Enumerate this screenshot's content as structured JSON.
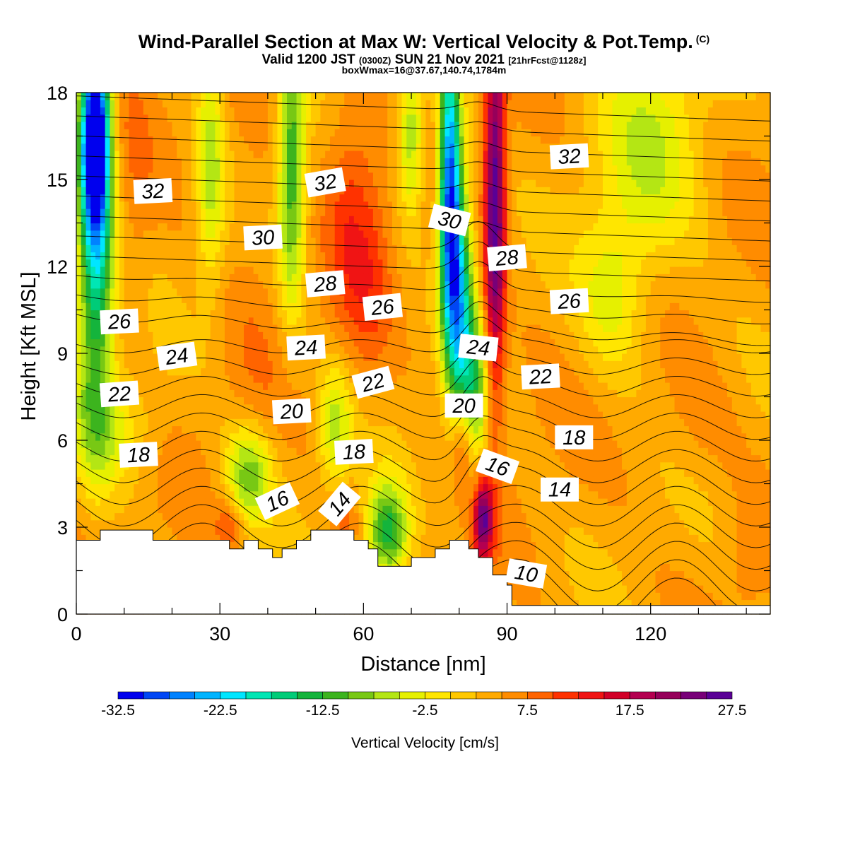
{
  "title": {
    "main": "Wind-Parallel Section at Max W: Vertical Velocity & Pot.Temp.",
    "copyright": "(C)",
    "valid_prefix": "Valid 1200 JST",
    "valid_utc": "(0300Z)",
    "valid_date": "SUN 21 Nov 2021",
    "forecast": "[21hrFcst@1128z]",
    "boxline": "boxWmax=16@37.67,140.74,1784m"
  },
  "chart_data": {
    "type": "heatmap",
    "xlabel": "Distance [nm]",
    "ylabel": "Height [Kft MSL]",
    "xlim": [
      0,
      145
    ],
    "ylim": [
      0,
      18
    ],
    "x_ticks": [
      0,
      30,
      60,
      90,
      120
    ],
    "y_ticks": [
      0,
      3,
      6,
      9,
      12,
      15,
      18
    ],
    "colorbar": {
      "label": "Vertical Velocity [cm/s]",
      "tick_labels": [
        "-32.5",
        "-22.5",
        "-12.5",
        "-2.5",
        "7.5",
        "17.5",
        "27.5"
      ],
      "tick_values": [
        -32.5,
        -22.5,
        -12.5,
        -2.5,
        7.5,
        17.5,
        27.5
      ],
      "min": -32.5,
      "max": 27.5,
      "step": 2.5,
      "colors": [
        "#0000ee",
        "#0046f5",
        "#0082ff",
        "#00b4ff",
        "#00e6ff",
        "#00e6b4",
        "#00cc78",
        "#14b43c",
        "#3cb41e",
        "#78c814",
        "#b4e614",
        "#e6f000",
        "#ffe600",
        "#ffc800",
        "#ffaa00",
        "#ff8c00",
        "#ff6400",
        "#ff3200",
        "#f01414",
        "#d20028",
        "#b40050",
        "#96005a",
        "#780078",
        "#5a0096"
      ]
    },
    "terrain": [
      [
        0,
        2.55
      ],
      [
        5,
        2.55
      ],
      [
        5,
        2.9
      ],
      [
        16,
        2.9
      ],
      [
        16,
        2.55
      ],
      [
        32,
        2.55
      ],
      [
        32,
        2.25
      ],
      [
        35,
        2.25
      ],
      [
        35,
        2.55
      ],
      [
        38,
        2.55
      ],
      [
        38,
        2.25
      ],
      [
        41,
        2.25
      ],
      [
        41,
        1.95
      ],
      [
        43,
        1.95
      ],
      [
        43,
        2.25
      ],
      [
        46,
        2.25
      ],
      [
        46,
        2.55
      ],
      [
        49,
        2.55
      ],
      [
        49,
        2.9
      ],
      [
        58,
        2.9
      ],
      [
        58,
        2.55
      ],
      [
        61,
        2.55
      ],
      [
        61,
        2.25
      ],
      [
        63,
        2.25
      ],
      [
        63,
        1.65
      ],
      [
        70,
        1.65
      ],
      [
        70,
        1.95
      ],
      [
        75,
        1.95
      ],
      [
        75,
        2.25
      ],
      [
        78,
        2.25
      ],
      [
        78,
        2.55
      ],
      [
        82,
        2.55
      ],
      [
        82,
        2.25
      ],
      [
        84,
        2.25
      ],
      [
        84,
        1.95
      ],
      [
        87,
        1.95
      ],
      [
        87,
        1.35
      ],
      [
        90,
        1.35
      ],
      [
        90,
        1.0
      ],
      [
        91,
        1.0
      ],
      [
        91,
        0.3
      ],
      [
        145,
        0.3
      ]
    ],
    "velocity_features": [
      {
        "x": 4,
        "y": 13.5,
        "sx": 2.6,
        "sy": 4.5,
        "value": -21
      },
      {
        "x": 4,
        "y": 16.5,
        "sx": 2.0,
        "sy": 2.0,
        "value": -25
      },
      {
        "x": 12,
        "y": 14,
        "sx": 3,
        "sy": 6,
        "value": 6
      },
      {
        "x": 28,
        "y": 15.5,
        "sx": 2.0,
        "sy": 3.0,
        "value": -6
      },
      {
        "x": 45,
        "y": 15.5,
        "sx": 2.0,
        "sy": 3.5,
        "value": -12
      },
      {
        "x": 37,
        "y": 13.0,
        "sx": 4,
        "sy": 5,
        "value": 6
      },
      {
        "x": 57,
        "y": 14.0,
        "sx": 3.5,
        "sy": 3.5,
        "value": 10
      },
      {
        "x": 62,
        "y": 12.0,
        "sx": 3.0,
        "sy": 3.0,
        "value": 8
      },
      {
        "x": 70,
        "y": 16.5,
        "sx": 2.0,
        "sy": 2.0,
        "value": -8
      },
      {
        "x": 78,
        "y": 15.0,
        "sx": 1.6,
        "sy": 3.5,
        "value": -27
      },
      {
        "x": 80,
        "y": 11.0,
        "sx": 2.0,
        "sy": 3.0,
        "value": -18
      },
      {
        "x": 83,
        "y": 7.5,
        "sx": 2.0,
        "sy": 2.0,
        "value": -10
      },
      {
        "x": 87.5,
        "y": 14.0,
        "sx": 1.5,
        "sy": 4.5,
        "value": 27
      },
      {
        "x": 85,
        "y": 3.3,
        "sx": 1.4,
        "sy": 1.0,
        "value": 24
      },
      {
        "x": 81,
        "y": 6.0,
        "sx": 1.6,
        "sy": 1.2,
        "value": 14
      },
      {
        "x": 36,
        "y": 4.8,
        "sx": 3.5,
        "sy": 1.2,
        "value": -9
      },
      {
        "x": 54,
        "y": 6.5,
        "sx": 2.5,
        "sy": 1.5,
        "value": -6
      },
      {
        "x": 65,
        "y": 2.8,
        "sx": 3.0,
        "sy": 1.2,
        "value": -14
      },
      {
        "x": 32,
        "y": 3.2,
        "sx": 2.0,
        "sy": 0.7,
        "value": 10
      },
      {
        "x": 56,
        "y": 3.3,
        "sx": 2.0,
        "sy": 0.7,
        "value": 9
      },
      {
        "x": 120,
        "y": 16.0,
        "sx": 8.0,
        "sy": 3.0,
        "value": -4
      },
      {
        "x": 8,
        "y": 6.5,
        "sx": 6.0,
        "sy": 1.5,
        "value": -3
      },
      {
        "x": 130,
        "y": 6.5,
        "sx": 6.0,
        "sy": 1.5,
        "value": 6
      },
      {
        "x": 140,
        "y": 2.0,
        "sx": 3.0,
        "sy": 1.5,
        "value": 6
      },
      {
        "x": 112,
        "y": 11.0,
        "sx": 5.0,
        "sy": 2.0,
        "value": -3
      },
      {
        "x": 95,
        "y": 15.0,
        "sx": 3.0,
        "sy": 3.0,
        "value": 4
      }
    ],
    "theta_contour_labels": [
      {
        "text": "32",
        "x": 16,
        "y": 14.6,
        "rotate": -3
      },
      {
        "text": "32",
        "x": 52,
        "y": 14.9,
        "rotate": -10
      },
      {
        "text": "32",
        "x": 103,
        "y": 15.8,
        "rotate": -3
      },
      {
        "text": "30",
        "x": 39,
        "y": 13.0,
        "rotate": -3
      },
      {
        "text": "30",
        "x": 78,
        "y": 13.6,
        "rotate": 14
      },
      {
        "text": "28",
        "x": 52,
        "y": 11.4,
        "rotate": -5
      },
      {
        "text": "28",
        "x": 90,
        "y": 12.3,
        "rotate": -5
      },
      {
        "text": "26",
        "x": 9,
        "y": 10.1,
        "rotate": -3
      },
      {
        "text": "26",
        "x": 64,
        "y": 10.6,
        "rotate": -6
      },
      {
        "text": "26",
        "x": 103,
        "y": 10.8,
        "rotate": -3
      },
      {
        "text": "24",
        "x": 21,
        "y": 8.9,
        "rotate": -8
      },
      {
        "text": "24",
        "x": 48,
        "y": 9.2,
        "rotate": -3
      },
      {
        "text": "24",
        "x": 84,
        "y": 9.2,
        "rotate": 6
      },
      {
        "text": "22",
        "x": 9,
        "y": 7.6,
        "rotate": -4
      },
      {
        "text": "22",
        "x": 62,
        "y": 8.0,
        "rotate": -15
      },
      {
        "text": "22",
        "x": 97,
        "y": 8.2,
        "rotate": -3
      },
      {
        "text": "20",
        "x": 45,
        "y": 7.0,
        "rotate": -3
      },
      {
        "text": "20",
        "x": 81,
        "y": 7.2,
        "rotate": 0
      },
      {
        "text": "18",
        "x": 13,
        "y": 5.5,
        "rotate": -3
      },
      {
        "text": "18",
        "x": 58,
        "y": 5.6,
        "rotate": -3
      },
      {
        "text": "18",
        "x": 104,
        "y": 6.1,
        "rotate": 0
      },
      {
        "text": "16",
        "x": 42,
        "y": 3.9,
        "rotate": -25
      },
      {
        "text": "16",
        "x": 88,
        "y": 5.1,
        "rotate": 20
      },
      {
        "text": "14",
        "x": 55,
        "y": 3.8,
        "rotate": -50
      },
      {
        "text": "14",
        "x": 101,
        "y": 4.3,
        "rotate": 0
      },
      {
        "text": "10",
        "x": 94,
        "y": 1.4,
        "rotate": 10
      }
    ]
  }
}
